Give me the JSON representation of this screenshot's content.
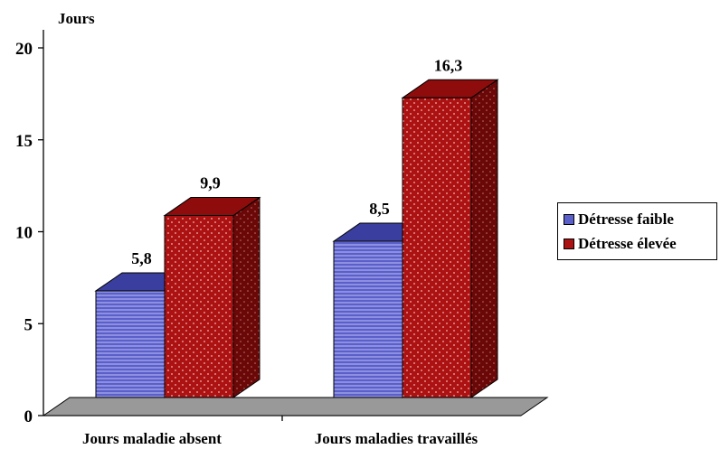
{
  "chart_data": {
    "type": "bar",
    "ylabel": "Jours",
    "ylim": [
      0,
      20
    ],
    "yticks": [
      0,
      5,
      10,
      15,
      20
    ],
    "categories": [
      "Jours maladie absent",
      "Jours maladies travaillés"
    ],
    "series": [
      {
        "name": "Détresse faible",
        "values": [
          5.8,
          8.5
        ],
        "labels": [
          "5,8",
          "8,5"
        ],
        "color": "#5B5FC9"
      },
      {
        "name": "Détresse élevée",
        "values": [
          9.9,
          16.3
        ],
        "labels": [
          "9,9",
          "16,3"
        ],
        "color": "#AD1212"
      }
    ],
    "legend_position": "right",
    "grid": false,
    "style": "3d"
  }
}
